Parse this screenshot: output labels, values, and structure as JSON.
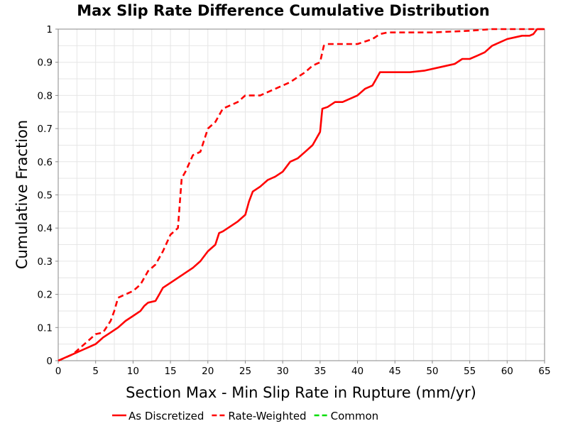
{
  "chart_data": {
    "type": "line",
    "title": "Max Slip Rate Difference Cumulative Distribution",
    "xlabel": "Section Max - Min Slip Rate in Rupture (mm/yr)",
    "ylabel": "Cumulative Fraction",
    "xlim": [
      0,
      65
    ],
    "ylim": [
      0,
      1
    ],
    "xticks": [
      0,
      5,
      10,
      15,
      20,
      25,
      30,
      35,
      40,
      45,
      50,
      55,
      60,
      65
    ],
    "yticks": [
      0,
      0.1,
      0.2,
      0.3,
      0.4,
      0.5,
      0.6,
      0.7,
      0.8,
      0.9,
      1
    ],
    "xtick_labels": [
      "0",
      "5",
      "10",
      "15",
      "20",
      "25",
      "30",
      "35",
      "40",
      "45",
      "50",
      "55",
      "60",
      "65"
    ],
    "ytick_labels": [
      "0",
      "0.1",
      "0.2",
      "0.3",
      "0.4",
      "0.5",
      "0.6",
      "0.7",
      "0.8",
      "0.9",
      "1"
    ],
    "grid": true,
    "legend_position": "bottom",
    "series": [
      {
        "name": "As Discretized",
        "color": "#ff0000",
        "dash": "solid",
        "x": [
          0,
          1,
          2,
          3,
          4,
          5,
          5.5,
          6,
          7,
          8,
          9,
          10,
          11,
          11.5,
          12,
          13,
          13.5,
          14,
          15,
          16,
          17,
          18,
          19,
          20,
          21,
          21.5,
          22,
          23,
          24,
          25,
          25.5,
          26,
          27,
          28,
          29,
          30,
          31,
          32,
          33,
          34,
          35,
          35.3,
          36,
          37,
          38,
          39,
          40,
          41,
          42,
          42.5,
          43,
          45,
          47,
          49,
          51,
          53,
          54,
          55,
          56,
          57,
          58,
          59,
          60,
          61,
          62,
          63,
          63.5,
          64,
          65
        ],
        "y": [
          0,
          0.01,
          0.02,
          0.03,
          0.04,
          0.05,
          0.06,
          0.07,
          0.085,
          0.1,
          0.12,
          0.135,
          0.15,
          0.165,
          0.175,
          0.18,
          0.2,
          0.22,
          0.235,
          0.25,
          0.265,
          0.28,
          0.3,
          0.33,
          0.35,
          0.385,
          0.39,
          0.405,
          0.42,
          0.44,
          0.48,
          0.51,
          0.525,
          0.545,
          0.555,
          0.57,
          0.6,
          0.61,
          0.63,
          0.65,
          0.69,
          0.76,
          0.765,
          0.78,
          0.78,
          0.79,
          0.8,
          0.82,
          0.83,
          0.85,
          0.87,
          0.87,
          0.87,
          0.875,
          0.885,
          0.895,
          0.91,
          0.91,
          0.92,
          0.93,
          0.95,
          0.96,
          0.97,
          0.975,
          0.98,
          0.98,
          0.985,
          1.0,
          1.0
        ]
      },
      {
        "name": "Rate-Weighted",
        "color": "#ff0000",
        "dash": "dashed",
        "x": [
          0,
          2,
          3,
          4,
          5,
          6,
          7,
          7.5,
          8,
          9,
          10,
          11,
          12,
          13,
          14,
          15,
          16,
          16.5,
          17,
          18,
          19,
          20,
          21,
          21.5,
          22,
          23,
          24,
          25,
          26,
          27,
          28,
          29,
          30,
          31,
          32,
          33,
          34,
          35,
          35.5,
          36,
          40,
          42,
          43,
          44,
          50,
          55,
          58,
          60,
          62,
          63,
          64,
          65
        ],
        "y": [
          0,
          0.02,
          0.04,
          0.06,
          0.08,
          0.085,
          0.12,
          0.15,
          0.19,
          0.2,
          0.21,
          0.23,
          0.27,
          0.29,
          0.33,
          0.38,
          0.4,
          0.55,
          0.57,
          0.62,
          0.63,
          0.7,
          0.72,
          0.74,
          0.76,
          0.77,
          0.78,
          0.8,
          0.8,
          0.8,
          0.81,
          0.82,
          0.83,
          0.84,
          0.855,
          0.87,
          0.89,
          0.9,
          0.95,
          0.955,
          0.955,
          0.97,
          0.985,
          0.99,
          0.99,
          0.995,
          1.0,
          1.0,
          1.0,
          1.0,
          1.0,
          1.0
        ]
      },
      {
        "name": "Common",
        "color": "#00dd00",
        "dash": "dashed",
        "x": [],
        "y": []
      }
    ]
  }
}
